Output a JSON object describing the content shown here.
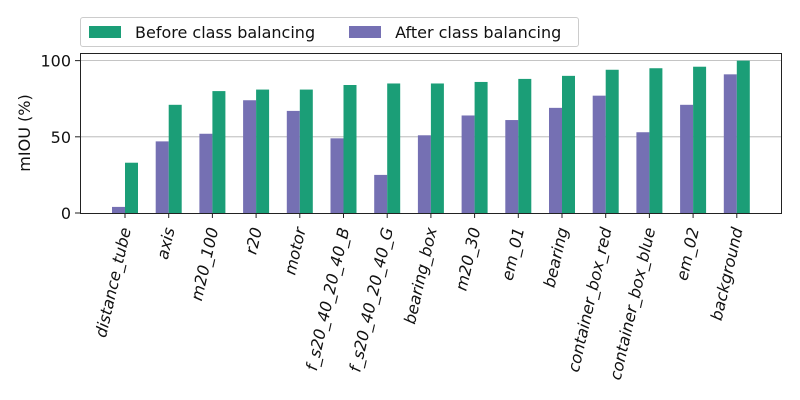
{
  "chart_data": {
    "type": "bar",
    "title": "",
    "xlabel": "",
    "ylabel": "mIOU (%)",
    "ylim": [
      0,
      105
    ],
    "yticks": [
      "0",
      "50",
      "100"
    ],
    "grid": "horizontal",
    "legend_position": "top",
    "categories": [
      "distance_tube",
      "axis",
      "m20_100",
      "r20",
      "motor",
      "f_s20_40_20_40_B",
      "f_s20_40_20_40_G",
      "bearing_box",
      "m20_30",
      "em_01",
      "bearing",
      "container_box_red",
      "container_box_blue",
      "em_02",
      "background"
    ],
    "series": [
      {
        "name": "After class balancing",
        "color": "#7570b3",
        "values": [
          4,
          47,
          52,
          74,
          67,
          49,
          25,
          51,
          64,
          61,
          69,
          77,
          53,
          71,
          91
        ]
      },
      {
        "name": "Before class balancing",
        "color": "#1b9e77",
        "values": [
          33,
          71,
          80,
          81,
          81,
          84,
          85,
          85,
          86,
          88,
          90,
          94,
          95,
          96,
          100
        ]
      }
    ]
  },
  "legend": {
    "items": [
      {
        "label": "Before class balancing",
        "color": "#1b9e77"
      },
      {
        "label": "After class balancing",
        "color": "#7570b3"
      }
    ]
  }
}
